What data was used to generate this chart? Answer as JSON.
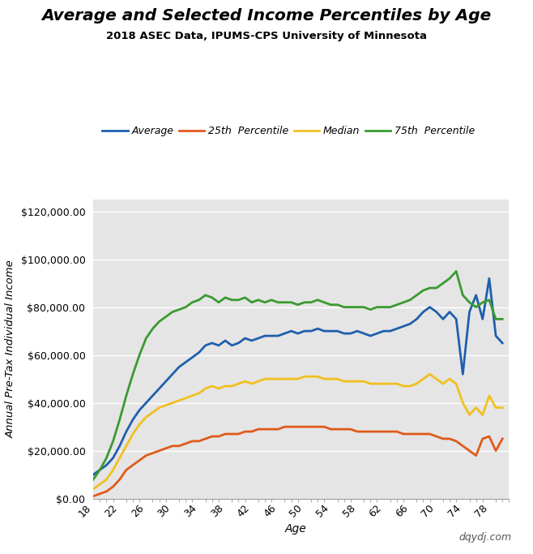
{
  "title": "Average and Selected Income Percentiles by Age",
  "subtitle": "2018 ASEC Data, IPUMS-CPS University of Minnesota",
  "xlabel": "Age",
  "ylabel": "Annual Pre-Tax Individual Income",
  "watermark": "dqydj.com",
  "background_color": "#e5e5e5",
  "line_colors": {
    "average": "#1f5fad",
    "p25": "#e05a1a",
    "median": "#f0c020",
    "p75": "#3a9a30"
  },
  "legend_labels": [
    "Average",
    "25th  Percentile",
    "Median",
    "75th  Percentile"
  ],
  "ages": [
    18,
    19,
    20,
    21,
    22,
    23,
    24,
    25,
    26,
    27,
    28,
    29,
    30,
    31,
    32,
    33,
    34,
    35,
    36,
    37,
    38,
    39,
    40,
    41,
    42,
    43,
    44,
    45,
    46,
    47,
    48,
    49,
    50,
    51,
    52,
    53,
    54,
    55,
    56,
    57,
    58,
    59,
    60,
    61,
    62,
    63,
    64,
    65,
    66,
    67,
    68,
    69,
    70,
    71,
    72,
    73,
    74,
    75,
    76,
    77,
    78,
    79,
    80
  ],
  "average": [
    10000,
    12000,
    14000,
    17000,
    22000,
    28000,
    33000,
    37000,
    40000,
    43000,
    46000,
    49000,
    52000,
    55000,
    57000,
    59000,
    61000,
    64000,
    65000,
    64000,
    66000,
    64000,
    65000,
    67000,
    66000,
    67000,
    68000,
    68000,
    68000,
    69000,
    70000,
    69000,
    70000,
    70000,
    71000,
    70000,
    70000,
    70000,
    69000,
    69000,
    70000,
    69000,
    68000,
    69000,
    70000,
    70000,
    71000,
    72000,
    73000,
    75000,
    78000,
    80000,
    78000,
    75000,
    78000,
    75000,
    52000,
    78000,
    85000,
    75000,
    92000,
    68000,
    65000
  ],
  "p25": [
    1000,
    2000,
    3000,
    5000,
    8000,
    12000,
    14000,
    16000,
    18000,
    19000,
    20000,
    21000,
    22000,
    22000,
    23000,
    24000,
    24000,
    25000,
    26000,
    26000,
    27000,
    27000,
    27000,
    28000,
    28000,
    29000,
    29000,
    29000,
    29000,
    30000,
    30000,
    30000,
    30000,
    30000,
    30000,
    30000,
    29000,
    29000,
    29000,
    29000,
    28000,
    28000,
    28000,
    28000,
    28000,
    28000,
    28000,
    27000,
    27000,
    27000,
    27000,
    27000,
    26000,
    25000,
    25000,
    24000,
    22000,
    20000,
    18000,
    25000,
    26000,
    20000,
    25000
  ],
  "median": [
    4000,
    6000,
    8000,
    12000,
    17000,
    22000,
    27000,
    31000,
    34000,
    36000,
    38000,
    39000,
    40000,
    41000,
    42000,
    43000,
    44000,
    46000,
    47000,
    46000,
    47000,
    47000,
    48000,
    49000,
    48000,
    49000,
    50000,
    50000,
    50000,
    50000,
    50000,
    50000,
    51000,
    51000,
    51000,
    50000,
    50000,
    50000,
    49000,
    49000,
    49000,
    49000,
    48000,
    48000,
    48000,
    48000,
    48000,
    47000,
    47000,
    48000,
    50000,
    52000,
    50000,
    48000,
    50000,
    48000,
    40000,
    35000,
    38000,
    35000,
    43000,
    38000,
    38000
  ],
  "p75": [
    8000,
    12000,
    17000,
    24000,
    33000,
    43000,
    52000,
    60000,
    67000,
    71000,
    74000,
    76000,
    78000,
    79000,
    80000,
    82000,
    83000,
    85000,
    84000,
    82000,
    84000,
    83000,
    83000,
    84000,
    82000,
    83000,
    82000,
    83000,
    82000,
    82000,
    82000,
    81000,
    82000,
    82000,
    83000,
    82000,
    81000,
    81000,
    80000,
    80000,
    80000,
    80000,
    79000,
    80000,
    80000,
    80000,
    81000,
    82000,
    83000,
    85000,
    87000,
    88000,
    88000,
    90000,
    92000,
    95000,
    85000,
    82000,
    80000,
    82000,
    83000,
    75000,
    75000
  ],
  "ylim": [
    0,
    125000
  ],
  "yticks": [
    0,
    20000,
    40000,
    60000,
    80000,
    100000,
    120000
  ],
  "xticks": [
    18,
    22,
    26,
    30,
    34,
    38,
    42,
    46,
    50,
    54,
    58,
    62,
    66,
    70,
    74,
    78
  ]
}
